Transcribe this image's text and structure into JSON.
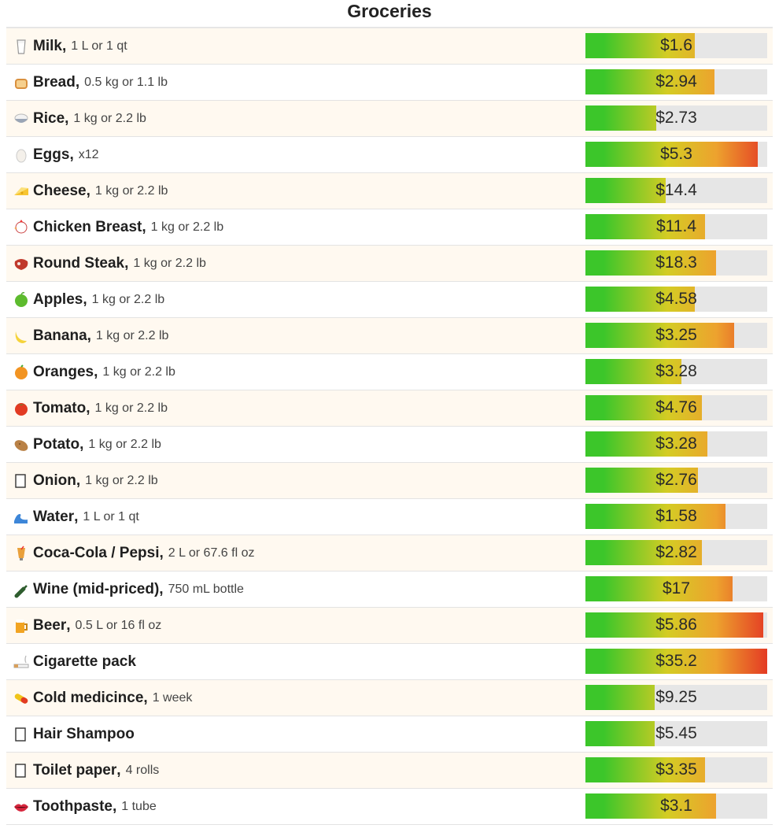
{
  "title": "Groceries",
  "chart_data": {
    "type": "bar",
    "title": "Groceries",
    "currency": "$",
    "items": [
      {
        "name": "Milk",
        "unit": "1 L or 1 qt",
        "icon": "milk-glass-icon",
        "label": "$1.6",
        "value": 1.6,
        "fill": 0.6
      },
      {
        "name": "Bread",
        "unit": "0.5 kg or 1.1 lb",
        "icon": "bread-icon",
        "label": "$2.94",
        "value": 2.94,
        "fill": 0.71
      },
      {
        "name": "Rice",
        "unit": "1 kg or 2.2 lb",
        "icon": "rice-bowl-icon",
        "label": "$2.73",
        "value": 2.73,
        "fill": 0.39
      },
      {
        "name": "Eggs",
        "unit": "x12",
        "icon": "egg-icon",
        "label": "$5.3",
        "value": 5.3,
        "fill": 0.95
      },
      {
        "name": "Cheese",
        "unit": "1 kg or 2.2 lb",
        "icon": "cheese-icon",
        "label": "$14.4",
        "value": 14.4,
        "fill": 0.44
      },
      {
        "name": "Chicken Breast",
        "unit": "1 kg or 2.2 lb",
        "icon": "chicken-icon",
        "label": "$11.4",
        "value": 11.4,
        "fill": 0.66
      },
      {
        "name": "Round Steak",
        "unit": "1 kg or 2.2 lb",
        "icon": "steak-icon",
        "label": "$18.3",
        "value": 18.3,
        "fill": 0.72
      },
      {
        "name": "Apples",
        "unit": "1 kg or 2.2 lb",
        "icon": "apple-icon",
        "label": "$4.58",
        "value": 4.58,
        "fill": 0.6
      },
      {
        "name": "Banana",
        "unit": "1 kg or 2.2 lb",
        "icon": "banana-icon",
        "label": "$3.25",
        "value": 3.25,
        "fill": 0.82
      },
      {
        "name": "Oranges",
        "unit": "1 kg or 2.2 lb",
        "icon": "orange-icon",
        "label": "$3.28",
        "value": 3.28,
        "fill": 0.53
      },
      {
        "name": "Tomato",
        "unit": "1 kg or 2.2 lb",
        "icon": "tomato-icon",
        "label": "$4.76",
        "value": 4.76,
        "fill": 0.64
      },
      {
        "name": "Potato",
        "unit": "1 kg or 2.2 lb",
        "icon": "potato-icon",
        "label": "$3.28",
        "value": 3.28,
        "fill": 0.67
      },
      {
        "name": "Onion",
        "unit": "1 kg or 2.2 lb",
        "icon": "onion-icon",
        "label": "$2.76",
        "value": 2.76,
        "fill": 0.62
      },
      {
        "name": "Water",
        "unit": "1 L or 1 qt",
        "icon": "water-wave-icon",
        "label": "$1.58",
        "value": 1.58,
        "fill": 0.77
      },
      {
        "name": "Coca-Cola / Pepsi",
        "unit": "2 L or 67.6 fl oz",
        "icon": "soda-glass-icon",
        "label": "$2.82",
        "value": 2.82,
        "fill": 0.64
      },
      {
        "name": "Wine (mid-priced)",
        "unit": "750 mL bottle",
        "icon": "wine-bottle-icon",
        "label": "$17",
        "value": 17,
        "fill": 0.81
      },
      {
        "name": "Beer",
        "unit": "0.5 L or 16 fl oz",
        "icon": "beer-mug-icon",
        "label": "$5.86",
        "value": 5.86,
        "fill": 0.98
      },
      {
        "name": "Cigarette pack",
        "unit": "",
        "icon": "cigarette-icon",
        "label": "$35.2",
        "value": 35.2,
        "fill": 1.0
      },
      {
        "name": "Cold medicince",
        "unit": "1 week",
        "icon": "pill-icon",
        "label": "$9.25",
        "value": 9.25,
        "fill": 0.38
      },
      {
        "name": "Hair Shampoo",
        "unit": "",
        "icon": "shampoo-icon",
        "label": "$5.45",
        "value": 5.45,
        "fill": 0.38
      },
      {
        "name": "Toilet paper",
        "unit": "4 rolls",
        "icon": "toilet-paper-icon",
        "label": "$3.35",
        "value": 3.35,
        "fill": 0.66
      },
      {
        "name": "Toothpaste",
        "unit": "1 tube",
        "icon": "lips-icon",
        "label": "$3.1",
        "value": 3.1,
        "fill": 0.72
      }
    ]
  },
  "colors": {
    "row_odd": "#fff9f0",
    "row_even": "#ffffff",
    "bar_track": "#e6e6e6",
    "bar_green": "#3cc62a",
    "bar_yellow": "#d4cc24",
    "bar_orange": "#eda22e",
    "bar_red": "#e43b24"
  }
}
